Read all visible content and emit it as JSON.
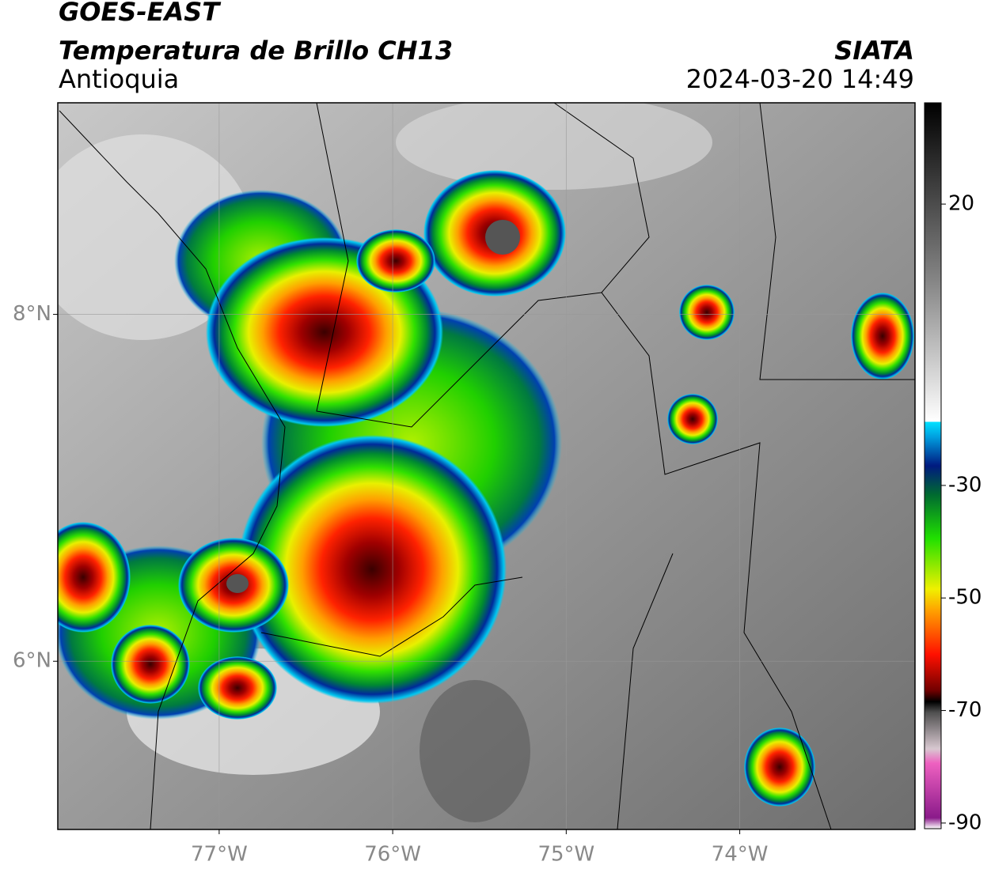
{
  "header": {
    "title": "GOES-EAST",
    "subtitle": "Temperatura de Brillo CH13",
    "region": "Antioquia",
    "source": "SIATA",
    "timestamp": "2024-03-20 14:49"
  },
  "map": {
    "xlim": [
      -77.93,
      -72.99
    ],
    "ylim": [
      5.03,
      9.22
    ],
    "xticks": [
      {
        "value": -77,
        "label": "77°W"
      },
      {
        "value": -76,
        "label": "76°W"
      },
      {
        "value": -75,
        "label": "75°W"
      },
      {
        "value": -74,
        "label": "74°W"
      }
    ],
    "yticks": [
      {
        "value": 6,
        "label": "6°N"
      },
      {
        "value": 8,
        "label": "8°N"
      }
    ],
    "grid": true
  },
  "colorbar": {
    "lim": [
      -91,
      38
    ],
    "ticks": [
      20,
      -30,
      -50,
      -70,
      -90
    ]
  }
}
